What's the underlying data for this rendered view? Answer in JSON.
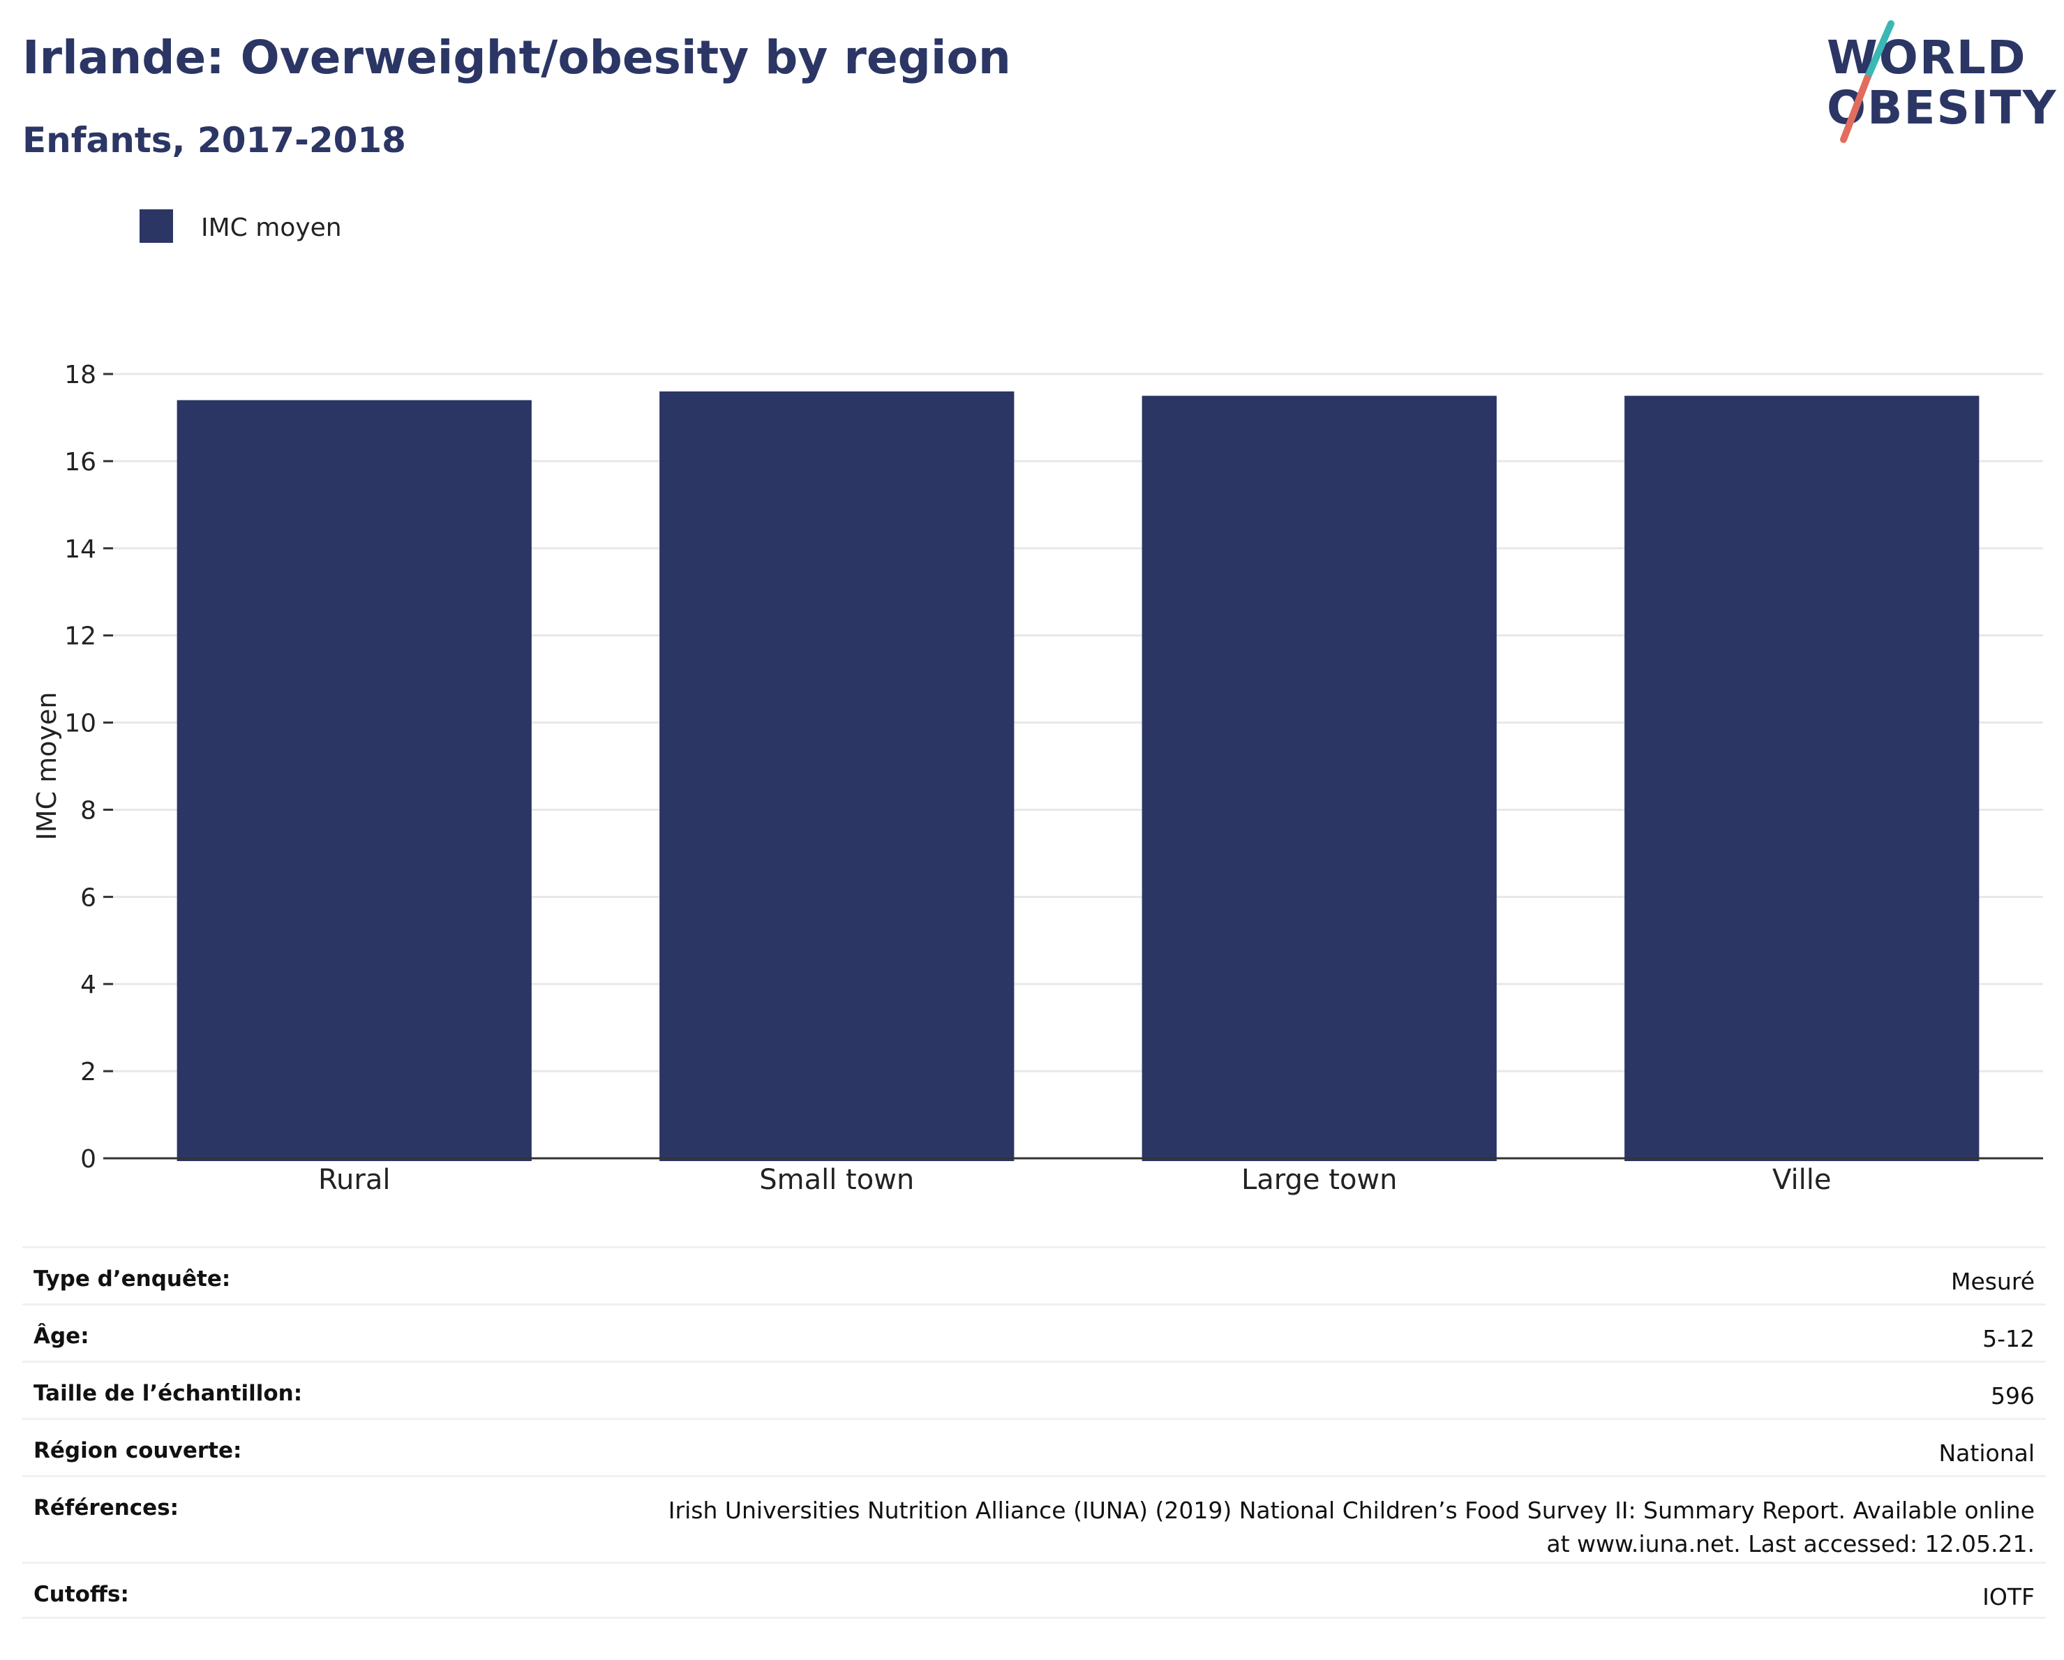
{
  "header": {
    "title": "Irlande: Overweight/obesity by region",
    "subtitle": "Enfants, 2017-2018",
    "logo_line1": "WORLD",
    "logo_line2": "OBESITY"
  },
  "colors": {
    "bar": "#2b3665",
    "text_dark": "#2b3665",
    "logo_accent_teal": "#3bb7b5",
    "logo_accent_coral": "#e26d5e",
    "gridline": "#e8e8e8",
    "axis_line": "#333333"
  },
  "chart_data": {
    "type": "bar",
    "categories": [
      "Rural",
      "Small town",
      "Large town",
      "Ville"
    ],
    "series": [
      {
        "name": "IMC moyen",
        "values": [
          17.4,
          17.6,
          17.5,
          17.5
        ]
      }
    ],
    "ylabel": "IMC moyen",
    "xlabel": "",
    "ylim": [
      0,
      18
    ],
    "yticks": [
      0,
      2,
      4,
      6,
      8,
      10,
      12,
      14,
      16,
      18
    ],
    "grid": true,
    "legend_position": "top-left"
  },
  "meta": {
    "rows": [
      {
        "label": "Type d’enquête:",
        "value": "Mesuré"
      },
      {
        "label": "Âge:",
        "value": "5-12"
      },
      {
        "label": "Taille de l’échantillon:",
        "value": "596"
      },
      {
        "label": "Région couverte:",
        "value": "National"
      },
      {
        "label": "Références:",
        "value": "Irish Universities Nutrition Alliance (IUNA) (2019) National Children’s Food Survey II: Summary Report. Available online at www.iuna.net. Last accessed: 12.05.21."
      },
      {
        "label": "Cutoffs:",
        "value": "IOTF"
      }
    ]
  }
}
